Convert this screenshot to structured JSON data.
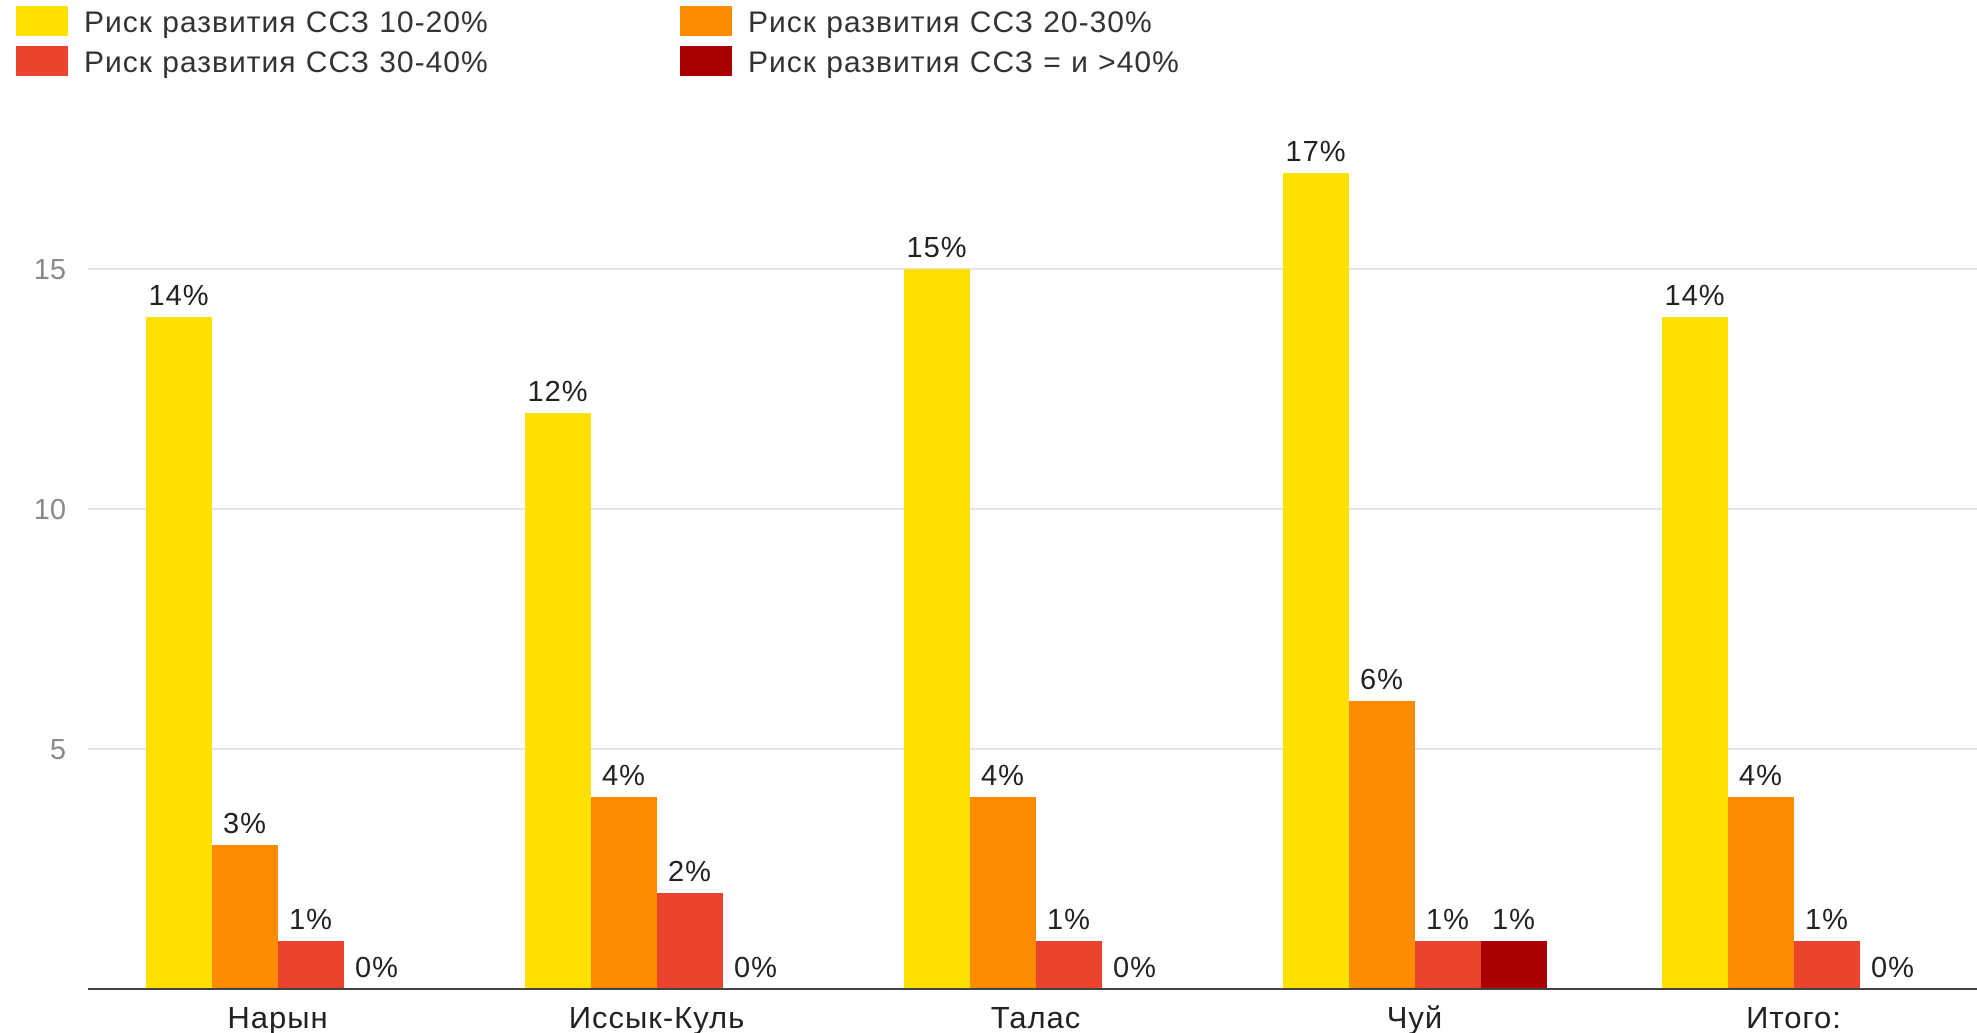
{
  "chart_data": {
    "type": "bar",
    "categories": [
      "Нарын",
      "Иссык-Куль",
      "Талас",
      "Чуй",
      "Итого:"
    ],
    "series": [
      {
        "name": "Риск развития ССЗ 10-20%",
        "color": "#FFE000",
        "values": [
          14,
          12,
          15,
          17,
          14
        ],
        "labels": [
          "14%",
          "12%",
          "15%",
          "17%",
          "14%"
        ]
      },
      {
        "name": "Риск развития ССЗ 20-30%",
        "color": "#FF8C00",
        "values": [
          3,
          4,
          4,
          6,
          4
        ],
        "labels": [
          "3%",
          "4%",
          "4%",
          "6%",
          "4%"
        ]
      },
      {
        "name": "Риск развития ССЗ 30-40%",
        "color": "#E8452C",
        "values": [
          1,
          2,
          1,
          1,
          1
        ],
        "labels": [
          "1%",
          "2%",
          "1%",
          "1%",
          "1%"
        ]
      },
      {
        "name": "Риск развития ССЗ = и >40%",
        "color": "#A80000",
        "values": [
          0,
          0,
          0,
          1,
          0
        ],
        "labels": [
          "0%",
          "0%",
          "0%",
          "1%",
          "0%"
        ]
      }
    ],
    "y_ticks": [
      5,
      10,
      15
    ],
    "ylim": [
      0,
      20
    ],
    "grid": true,
    "legend_position": "top-left"
  }
}
